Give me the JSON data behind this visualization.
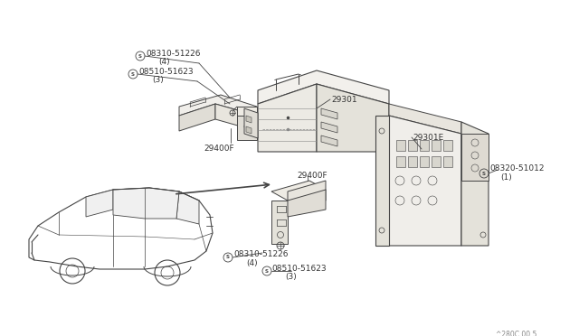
{
  "background_color": "#ffffff",
  "line_color": "#444444",
  "text_color": "#333333",
  "diagram_code": "^280C 00 5",
  "figsize": [
    6.4,
    3.72
  ],
  "dpi": 100,
  "labels": {
    "08310_top": "08310-51226",
    "08310_top_qty": "(4)",
    "08510_top": "08510-51623",
    "08510_top_qty": "(3)",
    "29400F_top": "29400F",
    "29301": "29301",
    "29301E": "29301E",
    "08320": "08320-51012",
    "08320_qty": "(1)",
    "29400F_bot": "29400F",
    "08310_bot": "08310-51226",
    "08310_bot_qty": "(4)",
    "08510_bot": "08510-51623",
    "08510_bot_qty": "(3)"
  }
}
